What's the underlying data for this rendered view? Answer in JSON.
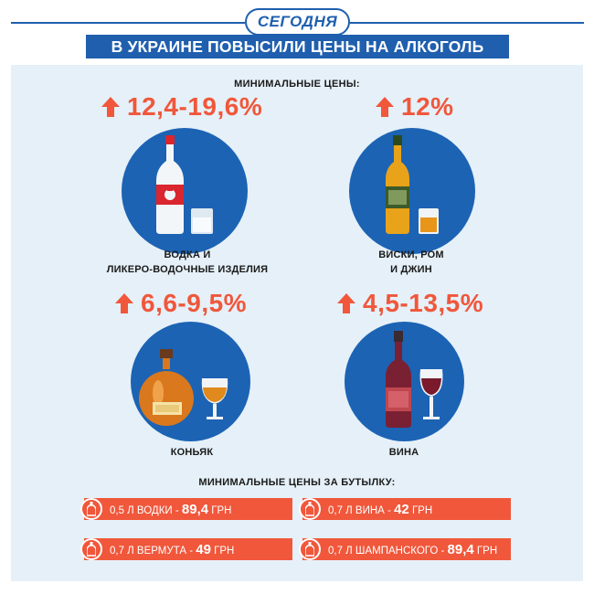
{
  "header": {
    "logo": "СЕГОДНЯ",
    "title": "В УКРАИНЕ ПОВЫСИЛИ ЦЕНЫ НА АЛКОГОЛЬ"
  },
  "min_prices_label": "МИНИМАЛЬНЫЕ ЦЕНЫ:",
  "bottle_prices_label": "МИНИМАЛЬНЫЕ ЦЕНЫ ЗА БУТЫЛКУ:",
  "categories": [
    {
      "increase": "12,4-19,6%",
      "label_line1": "ВОДКА И",
      "label_line2": "ЛИКЕРО-ВОДОЧНЫЕ ИЗДЕЛИЯ",
      "icon": "vodka-bottle-icon"
    },
    {
      "increase": "12%",
      "label_line1": "ВИСКИ, РОМ",
      "label_line2": "И ДЖИН",
      "icon": "whisky-bottle-icon"
    },
    {
      "increase": "6,6-9,5%",
      "label_line1": "КОНЬЯК",
      "icon": "cognac-bottle-icon"
    },
    {
      "increase": "4,5-13,5%",
      "label_line1": "ВИНА",
      "icon": "wine-bottle-icon"
    }
  ],
  "bottle_prices": [
    {
      "item": "0,5 Л ВОДКИ - ",
      "price": "89,4",
      "unit": " ГРН"
    },
    {
      "item": "0,7 Л ВИНА - ",
      "price": "42",
      "unit": " ГРН"
    },
    {
      "item": "0,7 Л ВЕРМУТА - ",
      "price": "49",
      "unit": " ГРН"
    },
    {
      "item": "0,7 Л ШАМПАНСКОГО - ",
      "price": "89,4",
      "unit": " ГРН"
    }
  ],
  "colors": {
    "brand_blue": "#1f5fae",
    "accent_orange": "#f0573b",
    "panel_bg": "#e5f0f8",
    "circle_blue": "#1c63b4"
  }
}
